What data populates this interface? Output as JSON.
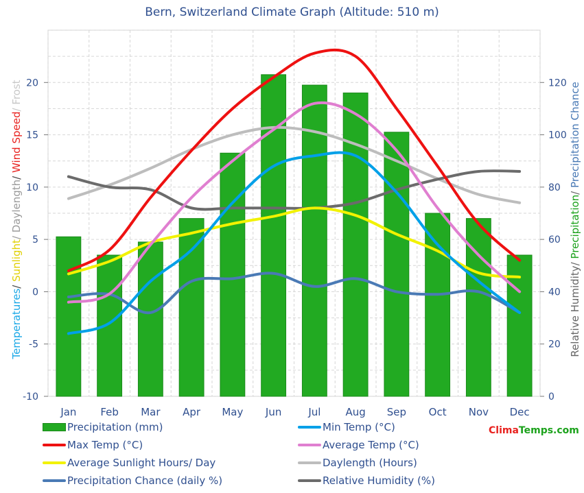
{
  "title": "Bern, Switzerland Climate Graph (Altitude: 510 m)",
  "left_axis_label": [
    {
      "text": "Temperatures",
      "color": "#19a7e6"
    },
    {
      "text": "/ ",
      "color": "#444444"
    },
    {
      "text": "Sunlight",
      "color": "#e0d000"
    },
    {
      "text": "/ Daylength",
      "color": "#9a9a9a"
    },
    {
      "text": "/ ",
      "color": "#444444"
    },
    {
      "text": "Wind Speed",
      "color": "#e8221f"
    },
    {
      "text": "/ Frost",
      "color": "#c8c8c8"
    }
  ],
  "right_axis_label": [
    {
      "text": "Relative Humidity",
      "color": "#666666"
    },
    {
      "text": "/ ",
      "color": "#666666"
    },
    {
      "text": "Precipitation",
      "color": "#1ca21c"
    },
    {
      "text": "/ ",
      "color": "#666666"
    },
    {
      "text": "Precipitation Chance",
      "color": "#4a7ab5"
    }
  ],
  "brand": {
    "part1": "Clima",
    "part2": "Temps.com"
  },
  "legend": [
    {
      "label": "Precipitation (mm)",
      "color": "#22aa22",
      "kind": "bar"
    },
    {
      "label": "Min Temp (°C)",
      "color": "#00a0e8",
      "kind": "line"
    },
    {
      "label": "Max Temp (°C)",
      "color": "#ee1111",
      "kind": "line"
    },
    {
      "label": "Average Temp (°C)",
      "color": "#e07fd0",
      "kind": "line"
    },
    {
      "label": "Average Sunlight Hours/ Day",
      "color": "#f2f200",
      "kind": "line"
    },
    {
      "label": "Daylength (Hours)",
      "color": "#bdbdbd",
      "kind": "line"
    },
    {
      "label": "Precipitation Chance (daily %)",
      "color": "#4a7ab5",
      "kind": "line"
    },
    {
      "label": "Relative Humidity (%)",
      "color": "#6b6b6b",
      "kind": "line"
    }
  ],
  "chart_data": {
    "type": "bar",
    "categories": [
      "Jan",
      "Feb",
      "Mar",
      "Apr",
      "May",
      "Jun",
      "Jul",
      "Aug",
      "Sep",
      "Oct",
      "Nov",
      "Dec"
    ],
    "left_axis": {
      "ylim": [
        -10,
        25
      ],
      "ticks": [
        -10,
        -5,
        0,
        5,
        10,
        15,
        20
      ]
    },
    "right_axis": {
      "ylim": [
        0,
        140
      ],
      "ticks": [
        0,
        20,
        40,
        60,
        80,
        100,
        120
      ]
    },
    "grid": true,
    "legend_position": "bottom",
    "series": [
      {
        "name": "Precipitation (mm)",
        "axis": "right",
        "type": "bar",
        "color": "#22aa22",
        "values": [
          61,
          54,
          59,
          68,
          93,
          123,
          119,
          116,
          101,
          70,
          68,
          54
        ]
      },
      {
        "name": "Min Temp (°C)",
        "axis": "left",
        "type": "line",
        "color": "#00a0e8",
        "values": [
          -4,
          -3,
          1,
          4,
          8.5,
          12,
          13,
          13,
          9.5,
          4.5,
          1,
          -2
        ]
      },
      {
        "name": "Max Temp (°C)",
        "axis": "left",
        "type": "line",
        "color": "#ee1111",
        "values": [
          2,
          4,
          9,
          13.5,
          17.5,
          20.5,
          22.8,
          22.5,
          17.5,
          12,
          6.5,
          3
        ]
      },
      {
        "name": "Average Temp (°C)",
        "axis": "left",
        "type": "line",
        "color": "#e07fd0",
        "values": [
          -1,
          -0.2,
          4.5,
          9,
          12.5,
          15.5,
          18,
          17,
          13.5,
          8,
          3.5,
          0
        ]
      },
      {
        "name": "Average Sunlight Hours/ Day",
        "axis": "left",
        "type": "line",
        "color": "#f2f200",
        "values": [
          1.7,
          2.9,
          4.7,
          5.6,
          6.5,
          7.2,
          8,
          7.3,
          5.5,
          3.9,
          1.8,
          1.4
        ]
      },
      {
        "name": "Daylength (Hours)",
        "axis": "left",
        "type": "line",
        "color": "#bdbdbd",
        "values": [
          8.9,
          10.2,
          11.8,
          13.6,
          15,
          15.7,
          15.3,
          14.1,
          12.5,
          10.8,
          9.3,
          8.5
        ]
      },
      {
        "name": "Precipitation Chance (daily %)",
        "axis": "right",
        "type": "line",
        "color": "#4a7ab5",
        "values": [
          38,
          39,
          32,
          44,
          45,
          47,
          42,
          45,
          40,
          39,
          40,
          32
        ]
      },
      {
        "name": "Relative Humidity (%)",
        "axis": "right",
        "type": "line",
        "color": "#6b6b6b",
        "values": [
          84,
          80,
          79,
          72,
          72,
          72,
          72,
          74,
          79,
          83,
          86,
          86
        ]
      }
    ]
  }
}
